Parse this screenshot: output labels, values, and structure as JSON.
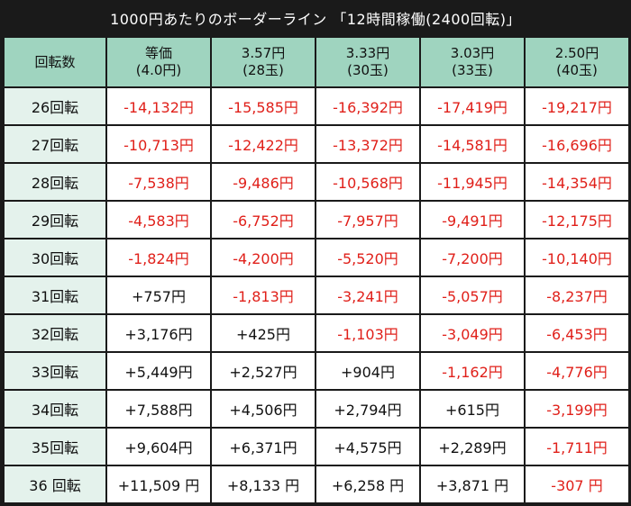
{
  "title": "1000円あたりのボーダーライン 「12時間稼働(2400回転)」",
  "colors": {
    "header_bg": "#9fd4bf",
    "row_header_bg": "#e4f2ec",
    "negative": "#e0201a",
    "positive": "#111111"
  },
  "table": {
    "corner": "回転数",
    "columns": [
      {
        "line1": "等価",
        "line2": "(4.0円)"
      },
      {
        "line1": "3.57円",
        "line2": "(28玉)"
      },
      {
        "line1": "3.33円",
        "line2": "(30玉)"
      },
      {
        "line1": "3.03円",
        "line2": "(33玉)"
      },
      {
        "line1": "2.50円",
        "line2": "(40玉)"
      }
    ],
    "rows": [
      {
        "label": "26回転",
        "cells": [
          "-14,132円",
          "-15,585円",
          "-16,392円",
          "-17,419円",
          "-19,217円"
        ]
      },
      {
        "label": "27回転",
        "cells": [
          "-10,713円",
          "-12,422円",
          "-13,372円",
          "-14,581円",
          "-16,696円"
        ]
      },
      {
        "label": "28回転",
        "cells": [
          "-7,538円",
          "-9,486円",
          "-10,568円",
          "-11,945円",
          "-14,354円"
        ]
      },
      {
        "label": "29回転",
        "cells": [
          "-4,583円",
          "-6,752円",
          "-7,957円",
          "-9,491円",
          "-12,175円"
        ]
      },
      {
        "label": "30回転",
        "cells": [
          "-1,824円",
          "-4,200円",
          "-5,520円",
          "-7,200円",
          "-10,140円"
        ]
      },
      {
        "label": "31回転",
        "cells": [
          "+757円",
          "-1,813円",
          "-3,241円",
          "-5,057円",
          "-8,237円"
        ]
      },
      {
        "label": "32回転",
        "cells": [
          "+3,176円",
          "+425円",
          "-1,103円",
          "-3,049円",
          "-6,453円"
        ]
      },
      {
        "label": "33回転",
        "cells": [
          "+5,449円",
          "+2,527円",
          "+904円",
          "-1,162円",
          "-4,776円"
        ]
      },
      {
        "label": "34回転",
        "cells": [
          "+7,588円",
          "+4,506円",
          "+2,794円",
          "+615円",
          "-3,199円"
        ]
      },
      {
        "label": "35回転",
        "cells": [
          "+9,604円",
          "+6,371円",
          "+4,575円",
          "+2,289円",
          "-1,711円"
        ]
      },
      {
        "label": "36 回転",
        "cells": [
          "+11,509 円",
          "+8,133 円",
          "+6,258 円",
          "+3,871 円",
          "-307 円"
        ]
      }
    ]
  }
}
